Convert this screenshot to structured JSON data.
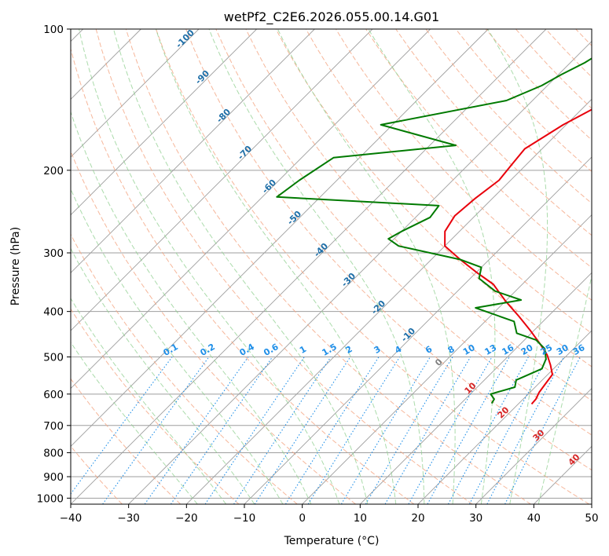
{
  "chart_data": {
    "type": "line",
    "subtype": "skew-t",
    "title": "wetPf2_C2E6.2026.055.00.14.G01",
    "xlabel": "Temperature (°C)",
    "ylabel": "Pressure (hPa)",
    "xlim": [
      -40,
      50
    ],
    "ylim": [
      1030,
      100
    ],
    "y_scale": "log",
    "x_ticks": [
      "−40",
      "−30",
      "−20",
      "−10",
      "0",
      "10",
      "20",
      "30",
      "40",
      "50"
    ],
    "x_tick_values": [
      -40,
      -30,
      -20,
      -10,
      0,
      10,
      20,
      30,
      40,
      50
    ],
    "y_ticks": [
      "100",
      "200",
      "300",
      "400",
      "500",
      "600",
      "700",
      "800",
      "900",
      "1000"
    ],
    "y_tick_values": [
      100,
      200,
      300,
      400,
      500,
      600,
      700,
      800,
      900,
      1000
    ],
    "grid": true,
    "colors": {
      "temperature": "#e8000b",
      "dewpoint": "#007a00",
      "isotherm": "#9e9e9e",
      "dry_adiabat": "#f4a582",
      "moist_adiabat": "#8fcf8f",
      "mixing_ratio": "#1f8fe8",
      "adiabat_label": "#1f6fa8",
      "hot_label": "#d62728",
      "zero_label": "#808080",
      "outer_curve": "#d8c6a8"
    },
    "series": [
      {
        "name": "Temperature",
        "points": [
          [
            -17.7,
            100
          ],
          [
            -13.5,
            110
          ],
          [
            -15.0,
            120
          ],
          [
            -16.0,
            130
          ],
          [
            -17.5,
            145
          ],
          [
            -20.5,
            160
          ],
          [
            -23.0,
            180
          ],
          [
            -22.5,
            195
          ],
          [
            -22.0,
            210
          ],
          [
            -23.0,
            230
          ],
          [
            -23.5,
            250
          ],
          [
            -22.5,
            270
          ],
          [
            -20.0,
            290
          ],
          [
            -15.0,
            310
          ],
          [
            -10.0,
            330
          ],
          [
            -5.0,
            350
          ],
          [
            0,
            380
          ],
          [
            5.0,
            410
          ],
          [
            9.5,
            440
          ],
          [
            13.5,
            470
          ],
          [
            16.5,
            495
          ],
          [
            18.8,
            520
          ],
          [
            20.8,
            545
          ],
          [
            21.2,
            570
          ],
          [
            21.6,
            595
          ],
          [
            22.2,
            615
          ],
          [
            22.3,
            630
          ]
        ]
      },
      {
        "name": "Dewpoint",
        "points": [
          [
            -25.6,
            100
          ],
          [
            -26.0,
            110
          ],
          [
            -27.5,
            118
          ],
          [
            -29.5,
            125
          ],
          [
            -31.0,
            132
          ],
          [
            -34.5,
            142
          ],
          [
            -52.0,
            160
          ],
          [
            -35.5,
            177
          ],
          [
            -54.5,
            188
          ],
          [
            -56.5,
            210
          ],
          [
            -57.5,
            228
          ],
          [
            -28.0,
            238
          ],
          [
            -27.5,
            252
          ],
          [
            -30.0,
            270
          ],
          [
            -31.0,
            280
          ],
          [
            -28.0,
            290
          ],
          [
            -15.0,
            310
          ],
          [
            -10.0,
            322
          ],
          [
            -8.5,
            340
          ],
          [
            -3.5,
            362
          ],
          [
            2.5,
            378
          ],
          [
            -4.0,
            393
          ],
          [
            5.0,
            420
          ],
          [
            7.5,
            445
          ],
          [
            12.0,
            460
          ],
          [
            15.0,
            480
          ],
          [
            17.0,
            505
          ],
          [
            18.0,
            530
          ],
          [
            15.5,
            560
          ],
          [
            16.5,
            580
          ],
          [
            13.5,
            600
          ],
          [
            15.0,
            615
          ],
          [
            15.3,
            628
          ]
        ]
      }
    ],
    "mixing_ratio_labels": [
      "0.1",
      "0.2",
      "0.4",
      "0.6",
      "1",
      "1.5",
      "2",
      "3",
      "4",
      "6",
      "8",
      "10",
      "13",
      "16",
      "20",
      "25",
      "30",
      "36"
    ],
    "moist_adiabat_labels": [
      "-100",
      "-90",
      "-80",
      "-70",
      "-60",
      "-50",
      "-40",
      "-30",
      "-20",
      "-10",
      "0",
      "10",
      "20",
      "30",
      "40"
    ]
  }
}
